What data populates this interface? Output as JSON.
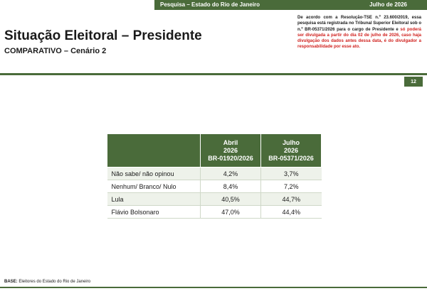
{
  "header": {
    "survey": "Pesquisa – Estado do Rio de Janeiro",
    "month": "Julho de 2026"
  },
  "title": "Situação Eleitoral – Presidente",
  "subtitle": "COMPARATIVO – Cenário 2",
  "disclaimer": {
    "black": "De acordo com a Resolução-TSE n.º 23.600/2019, essa pesquisa está registrada no Tribunal Superior Eleitoral sob o n.º BR-05371/2026 para o cargo de Presidente e",
    "red": "só poderá ser divulgada a partir do dia 02 de julho de 2026, caso haja divulgação dos dados antes dessa data, é do divulgador a responsabilidade por esse ato."
  },
  "page_number": "12",
  "table": {
    "columns": [
      "Abril\n2026\nBR-01920/2026",
      "Julho\n2026\nBR-05371/2026"
    ],
    "rows": [
      {
        "label": "Não sabe/ não opinou",
        "april": "4,2%",
        "july": "3,7%"
      },
      {
        "label": "Nenhum/ Branco/ Nulo",
        "april": "8,4%",
        "july": "7,2%"
      },
      {
        "label": "Lula",
        "april": "40,5%",
        "july": "44,7%"
      },
      {
        "label": "Flávio Bolsonaro",
        "april": "47,0%",
        "july": "44,4%"
      }
    ]
  },
  "base": {
    "label": "BASE:",
    "text": "Eleitores do Estado do Rio de Janeiro"
  },
  "colors": {
    "brand_green": "#4a6b3a",
    "warning_red": "#d0211e"
  }
}
